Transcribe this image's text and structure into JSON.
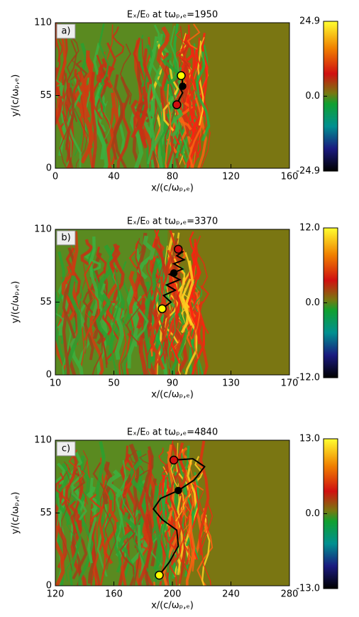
{
  "chart_data": [
    {
      "type": "heatmap",
      "title": "Eₓ/E₀ at tωₚ,ₑ=1950",
      "label": "a)",
      "xlabel": "x/(c/ωₚ,ₑ)",
      "ylabel": "y/(c/ωₚ,ₑ)",
      "xlim": [
        0,
        160
      ],
      "xticks": [
        0,
        40,
        80,
        120,
        160
      ],
      "ylim": [
        0,
        110
      ],
      "yticks": [
        0,
        55,
        110
      ],
      "colorbar_lim": [
        -24.9,
        24.9
      ],
      "colorbar_ticks": [
        24.9,
        {
          "value": 0,
          "label": "0.0"
        },
        -24.9
      ],
      "trajectory": {
        "x": [
          83,
          85,
          87,
          85,
          87,
          86
        ],
        "y": [
          48,
          53,
          57,
          61,
          65,
          70
        ]
      },
      "markers": {
        "x": [
          86,
          87,
          83
        ],
        "y": [
          70,
          62,
          48
        ],
        "colors": [
          "#ffff00",
          "#000000",
          "#d01010"
        ]
      }
    },
    {
      "type": "heatmap",
      "title": "Eₓ/E₀ at tωₚ,ₑ=3370",
      "label": "b)",
      "xlabel": "x/(c/ωₚ,ₑ)",
      "ylabel": "y/(c/ωₚ,ₑ)",
      "xlim": [
        10,
        170
      ],
      "xticks": [
        10,
        50,
        90,
        130,
        170
      ],
      "ylim": [
        0,
        110
      ],
      "yticks": [
        0,
        55,
        110
      ],
      "colorbar_lim": [
        -12,
        12
      ],
      "colorbar_ticks": [
        {
          "value": 12,
          "label": "12.0"
        },
        {
          "value": 0,
          "label": "0.0"
        },
        {
          "value": -12,
          "label": "-12.0"
        }
      ],
      "trajectory": {
        "x": [
          83,
          89,
          84,
          92,
          86,
          95,
          88,
          97,
          91,
          98,
          93,
          97,
          94
        ],
        "y": [
          50,
          55,
          60,
          64,
          68,
          72,
          76,
          80,
          84,
          87,
          90,
          93,
          95
        ]
      },
      "markers": {
        "x": [
          83,
          91,
          94
        ],
        "y": [
          50,
          77,
          95
        ],
        "colors": [
          "#ffff00",
          "#000000",
          "#d01010"
        ]
      }
    },
    {
      "type": "heatmap",
      "title": "Eₓ/E₀ at tωₚ,ₑ=4840",
      "label": "c)",
      "xlabel": "x/(c/ωₚ,ₑ)",
      "ylabel": "y/(c/ωₚ,ₑ)",
      "xlim": [
        120,
        280
      ],
      "xticks": [
        120,
        160,
        200,
        240,
        280
      ],
      "ylim": [
        0,
        110
      ],
      "yticks": [
        0,
        55,
        110
      ],
      "colorbar_lim": [
        -13,
        13
      ],
      "colorbar_ticks": [
        {
          "value": 13,
          "label": "13.0"
        },
        {
          "value": 0,
          "label": "0.0"
        },
        {
          "value": -13,
          "label": "-13.0"
        }
      ],
      "trajectory": {
        "x": [
          191,
          198,
          204,
          203,
          193,
          187,
          192,
          204,
          215,
          222,
          214,
          201
        ],
        "y": [
          8,
          18,
          30,
          42,
          50,
          58,
          66,
          72,
          80,
          90,
          96,
          95
        ]
      },
      "markers": {
        "x": [
          191,
          204,
          201
        ],
        "y": [
          8,
          72,
          95
        ],
        "colors": [
          "#ffff00",
          "#000000",
          "#d01010"
        ]
      }
    }
  ]
}
